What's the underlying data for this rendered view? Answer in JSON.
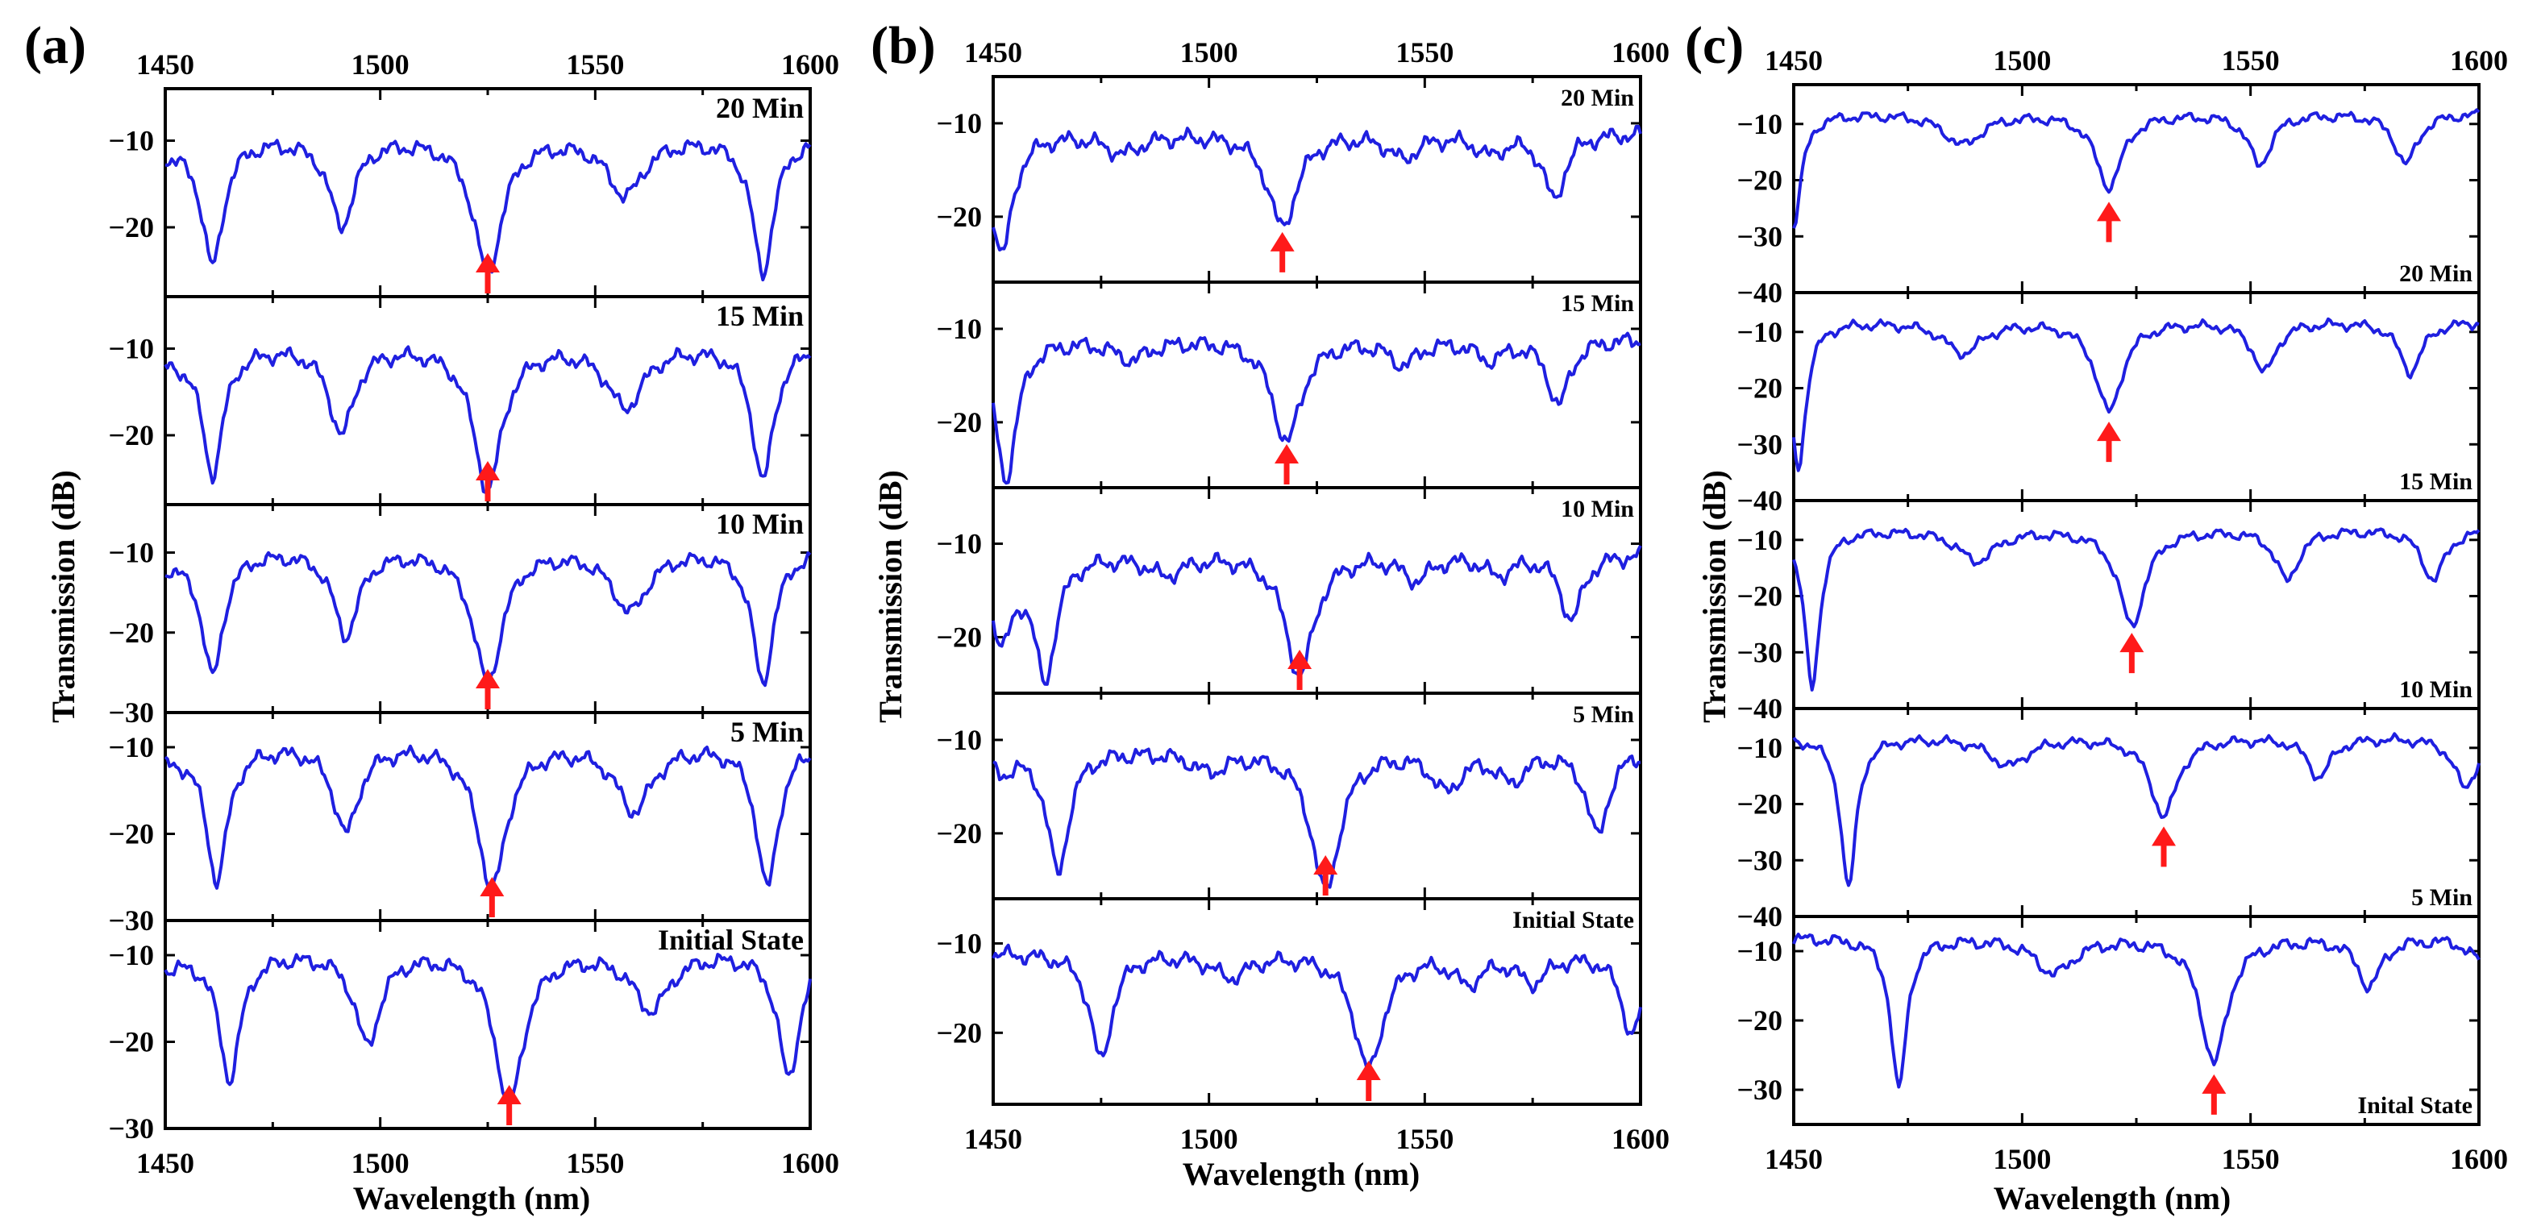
{
  "figure": {
    "panels": [
      {
        "id": "a",
        "label": "(a)"
      },
      {
        "id": "b",
        "label": "(b)"
      },
      {
        "id": "c",
        "label": "(c)"
      }
    ],
    "xlabel": "Wavelength (nm)",
    "ylabel": "Transmission (dB)"
  },
  "colors": {
    "line": "#1f1fe0",
    "arrow": "#ff1a1a",
    "axis": "#000000"
  },
  "chart_data": [
    {
      "panel": "(a)",
      "type": "line",
      "xlabel": "Wavelength (nm)",
      "ylabel": "Transmission (dB)",
      "xlim": [
        1450,
        1600
      ],
      "xticks": [
        1450,
        1500,
        1550,
        1600
      ],
      "series": [
        {
          "name": "20 Min",
          "ylim": [
            -28,
            -4
          ],
          "yticks": [
            -10,
            -20
          ],
          "tick_labels": [
            "−10",
            "−20"
          ],
          "baseline": -9.5,
          "dips": [
            [
              1461,
              -24,
              3
            ],
            [
              1491,
              -19.5,
              3.5
            ],
            [
              1525,
              -25,
              4
            ],
            [
              1557,
              -16,
              5
            ],
            [
              1589,
              -25,
              3
            ],
            [
              1450,
              -11,
              5
            ]
          ],
          "marker": 1525
        },
        {
          "name": "15 Min",
          "ylim": [
            -28,
            -4
          ],
          "yticks": [
            -10,
            -20
          ],
          "tick_labels": [
            "−10",
            "−20"
          ],
          "baseline": -9.5,
          "dips": [
            [
              1461,
              -24,
              3
            ],
            [
              1491,
              -19.5,
              3.5
            ],
            [
              1525,
              -26,
              4
            ],
            [
              1557,
              -16.5,
              5
            ],
            [
              1589,
              -25,
              3
            ],
            [
              1450,
              -11,
              5
            ]
          ],
          "marker": 1525
        },
        {
          "name": "10 Min",
          "ylim": [
            -30,
            -4
          ],
          "yticks": [
            -10,
            -20,
            -30
          ],
          "tick_labels": [
            "−10",
            "−20",
            "−30"
          ],
          "baseline": -9.5,
          "dips": [
            [
              1461,
              -25,
              3
            ],
            [
              1492,
              -20,
              3.5
            ],
            [
              1525,
              -26,
              4
            ],
            [
              1558,
              -17,
              5
            ],
            [
              1589,
              -26,
              3
            ],
            [
              1450,
              -11,
              5
            ]
          ],
          "marker": 1525
        },
        {
          "name": "5 Min",
          "ylim": [
            -30,
            -6
          ],
          "yticks": [
            -10,
            -20,
            -30
          ],
          "tick_labels": [
            "−10",
            "−20",
            "−30"
          ],
          "baseline": -9.5,
          "dips": [
            [
              1462,
              -25,
              3
            ],
            [
              1492,
              -19.5,
              3.5
            ],
            [
              1526,
              -26,
              4
            ],
            [
              1559,
              -17,
              5
            ],
            [
              1590,
              -26,
              3
            ],
            [
              1450,
              -11,
              5
            ]
          ],
          "marker": 1526
        },
        {
          "name": "Initial State",
          "ylim": [
            -30,
            -6
          ],
          "yticks": [
            -10,
            -20,
            -30
          ],
          "tick_labels": [
            "−10",
            "−20",
            "−30"
          ],
          "baseline": -9.5,
          "dips": [
            [
              1465,
              -24,
              3
            ],
            [
              1497,
              -20,
              3.5
            ],
            [
              1530,
              -27,
              4
            ],
            [
              1563,
              -16,
              5
            ],
            [
              1595,
              -24,
              3
            ],
            [
              1450,
              -11,
              5
            ]
          ],
          "marker": 1530
        }
      ]
    },
    {
      "panel": "(b)",
      "type": "line",
      "xlabel": "Wavelength (nm)",
      "ylabel": "Transmission (dB)",
      "xlim": [
        1450,
        1600
      ],
      "xticks": [
        1450,
        1500,
        1550,
        1600
      ],
      "series": [
        {
          "name": "20 Min",
          "ylim": [
            -27,
            -5
          ],
          "yticks": [
            -10,
            -20
          ],
          "tick_labels": [
            "−10",
            "−20"
          ],
          "baseline": -11,
          "dips": [
            [
              1452,
              -24,
              3
            ],
            [
              1480,
              -13,
              5
            ],
            [
              1517,
              -21,
              4
            ],
            [
              1545,
              -13.5,
              4
            ],
            [
              1565,
              -13,
              4
            ],
            [
              1580,
              -18,
              3
            ],
            [
              1600,
              -11,
              3
            ]
          ],
          "marker": 1517
        },
        {
          "name": "15 Min",
          "ylim": [
            -27,
            -5
          ],
          "yticks": [
            -10,
            -20
          ],
          "tick_labels": [
            "−10",
            "−20"
          ],
          "baseline": -11,
          "dips": [
            [
              1453,
              -26,
              3
            ],
            [
              1482,
              -13,
              5
            ],
            [
              1518,
              -22,
              4
            ],
            [
              1545,
              -13.5,
              4
            ],
            [
              1565,
              -13,
              4
            ],
            [
              1581,
              -18,
              3
            ],
            [
              1600,
              -11,
              3
            ]
          ],
          "marker": 1518
        },
        {
          "name": "10 Min",
          "ylim": [
            -26,
            -4
          ],
          "yticks": [
            -10,
            -20
          ],
          "tick_labels": [
            "−10",
            "−20"
          ],
          "baseline": -11,
          "dips": [
            [
              1452,
              -20,
              3
            ],
            [
              1462,
              -24,
              3
            ],
            [
              1490,
              -13,
              5
            ],
            [
              1521,
              -24,
              4
            ],
            [
              1548,
              -13.5,
              4
            ],
            [
              1567,
              -13,
              4
            ],
            [
              1584,
              -18,
              3
            ],
            [
              1600,
              -11,
              3
            ]
          ],
          "marker": 1521
        },
        {
          "name": "5 Min",
          "ylim": [
            -27,
            -5
          ],
          "yticks": [
            -10,
            -20
          ],
          "tick_labels": [
            "−10",
            "−20"
          ],
          "baseline": -11,
          "dips": [
            [
              1452,
              -13,
              3
            ],
            [
              1465,
              -24,
              3
            ],
            [
              1500,
              -13,
              5
            ],
            [
              1527,
              -26,
              4
            ],
            [
              1555,
              -15,
              4
            ],
            [
              1570,
              -14,
              4
            ],
            [
              1590,
              -20,
              3
            ],
            [
              1600,
              -11,
              3
            ]
          ],
          "marker": 1527
        },
        {
          "name": "Initial State",
          "ylim": [
            -28,
            -5
          ],
          "yticks": [
            -10,
            -20
          ],
          "tick_labels": [
            "−10",
            "−20"
          ],
          "baseline": -11,
          "dips": [
            [
              1475,
              -23,
              3
            ],
            [
              1505,
              -13.5,
              5
            ],
            [
              1537,
              -24,
              4
            ],
            [
              1560,
              -14,
              4
            ],
            [
              1575,
              -14,
              4
            ],
            [
              1598,
              -20,
              3
            ]
          ],
          "marker": 1537
        }
      ]
    },
    {
      "panel": "(c)",
      "type": "line",
      "xlabel": "Wavelength (nm)",
      "ylabel": "Transmission (dB)",
      "xlim": [
        1450,
        1600
      ],
      "xticks": [
        1450,
        1500,
        1550,
        1600
      ],
      "series": [
        {
          "name": "20 Min",
          "ylim": [
            -40,
            -3
          ],
          "yticks": [
            -10,
            -20,
            -30,
            -40
          ],
          "tick_labels": [
            "−10",
            "−20",
            "−30",
            "−40"
          ],
          "baseline": -8,
          "dips": [
            [
              1450,
              -28,
              2
            ],
            [
              1487,
              -13.5,
              5
            ],
            [
              1519,
              -21,
              3.5
            ],
            [
              1552,
              -17,
              3
            ],
            [
              1584,
              -17,
              3
            ]
          ],
          "marker": 1519
        },
        {
          "name": "15 Min",
          "ylim": [
            -40,
            -3
          ],
          "yticks": [
            -10,
            -20,
            -30,
            -40
          ],
          "tick_labels": [
            "−10",
            "−20",
            "−30",
            "−40"
          ],
          "baseline": -8,
          "dips": [
            [
              1451,
              -34,
              2
            ],
            [
              1487,
              -13.5,
              5
            ],
            [
              1519,
              -24,
              3.5
            ],
            [
              1553,
              -17,
              3
            ],
            [
              1585,
              -17,
              3
            ]
          ],
          "marker": 1519
        },
        {
          "name": "10 Min",
          "ylim": [
            -40,
            -3
          ],
          "yticks": [
            -10,
            -20,
            -30,
            -40
          ],
          "tick_labels": [
            "−10",
            "−20",
            "−30",
            "−40"
          ],
          "baseline": -8,
          "dips": [
            [
              1454,
              -36,
              2
            ],
            [
              1490,
              -13.5,
              5
            ],
            [
              1524,
              -25,
              3.5
            ],
            [
              1558,
              -17,
              3
            ],
            [
              1590,
              -17,
              3
            ]
          ],
          "marker": 1524
        },
        {
          "name": "5 Min",
          "ylim": [
            -40,
            -3
          ],
          "yticks": [
            -10,
            -20,
            -30,
            -40
          ],
          "tick_labels": [
            "−10",
            "−20",
            "−30",
            "−40"
          ],
          "baseline": -8,
          "dips": [
            [
              1462,
              -35,
              2
            ],
            [
              1497,
              -13,
              5
            ],
            [
              1531,
              -22,
              3.5
            ],
            [
              1565,
              -15,
              3
            ],
            [
              1597,
              -17,
              3
            ]
          ],
          "marker": 1531
        },
        {
          "name": "Inital State",
          "ylim": [
            -35,
            -5
          ],
          "yticks": [
            -10,
            -20,
            -30
          ],
          "tick_labels": [
            "−10",
            "−20",
            "−30"
          ],
          "baseline": -8,
          "dips": [
            [
              1473,
              -30,
              2
            ],
            [
              1507,
              -13,
              5
            ],
            [
              1542,
              -26,
              3.5
            ],
            [
              1576,
              -15,
              3
            ],
            [
              1600,
              -11,
              3
            ]
          ],
          "marker": 1542
        }
      ]
    }
  ]
}
